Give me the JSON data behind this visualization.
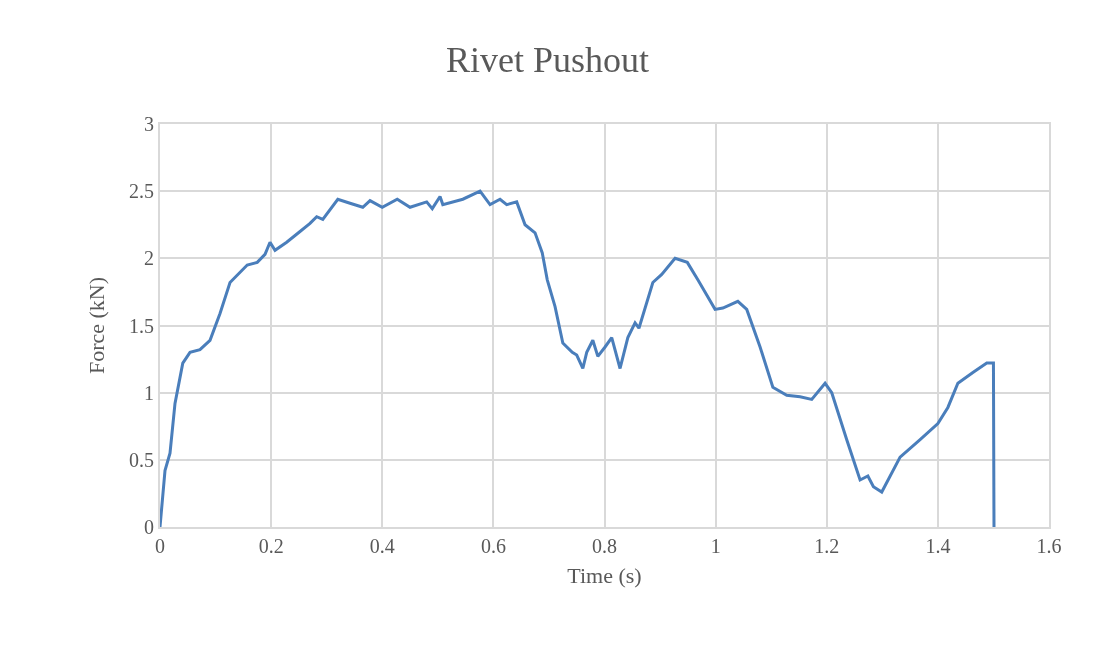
{
  "chart_data": {
    "type": "line",
    "title": "Rivet Pushout",
    "xlabel": "Time (s)",
    "ylabel": "Force (kN)",
    "x": [
      0,
      0.009,
      0.018,
      0.027,
      0.041,
      0.054,
      0.072,
      0.09,
      0.108,
      0.126,
      0.157,
      0.175,
      0.189,
      0.198,
      0.207,
      0.228,
      0.252,
      0.27,
      0.282,
      0.293,
      0.32,
      0.342,
      0.365,
      0.378,
      0.4,
      0.427,
      0.45,
      0.48,
      0.49,
      0.504,
      0.509,
      0.545,
      0.576,
      0.594,
      0.612,
      0.624,
      0.642,
      0.657,
      0.675,
      0.688,
      0.697,
      0.711,
      0.725,
      0.742,
      0.75,
      0.761,
      0.768,
      0.779,
      0.788,
      0.801,
      0.813,
      0.828,
      0.842,
      0.855,
      0.862,
      0.887,
      0.903,
      0.927,
      0.949,
      0.968,
      0.999,
      1.013,
      1.04,
      1.056,
      1.08,
      1.103,
      1.128,
      1.152,
      1.173,
      1.197,
      1.209,
      1.236,
      1.26,
      1.274,
      1.284,
      1.299,
      1.332,
      1.368,
      1.4,
      1.418,
      1.436,
      1.463,
      1.488,
      1.5,
      1.501
    ],
    "series": [
      {
        "color": "#4a7ebb",
        "values": [
          0,
          0.42,
          0.55,
          0.92,
          1.22,
          1.3,
          1.32,
          1.39,
          1.59,
          1.82,
          1.95,
          1.97,
          2.03,
          2.12,
          2.06,
          2.12,
          2.2,
          2.26,
          2.31,
          2.29,
          2.44,
          2.41,
          2.38,
          2.43,
          2.38,
          2.44,
          2.38,
          2.42,
          2.37,
          2.46,
          2.4,
          2.44,
          2.5,
          2.4,
          2.44,
          2.4,
          2.42,
          2.25,
          2.19,
          2.04,
          1.84,
          1.64,
          1.37,
          1.3,
          1.28,
          1.18,
          1.3,
          1.39,
          1.27,
          1.34,
          1.41,
          1.18,
          1.41,
          1.52,
          1.48,
          1.82,
          1.88,
          2,
          1.97,
          1.84,
          1.62,
          1.63,
          1.68,
          1.62,
          1.34,
          1.04,
          0.98,
          0.97,
          0.95,
          1.07,
          1,
          0.65,
          0.35,
          0.38,
          0.3,
          0.26,
          0.52,
          0.65,
          0.77,
          0.89,
          1.07,
          1.15,
          1.22,
          1.22,
          0
        ]
      }
    ],
    "xlim": [
      0,
      1.6
    ],
    "xticks": [
      0,
      0.2,
      0.4,
      0.6,
      0.8,
      1,
      1.2,
      1.4,
      1.6
    ],
    "ylim": [
      0,
      3
    ],
    "yticks": [
      0,
      0.5,
      1,
      1.5,
      2,
      2.5,
      3
    ],
    "grid": true,
    "marker": "none",
    "line_style": "solid"
  }
}
